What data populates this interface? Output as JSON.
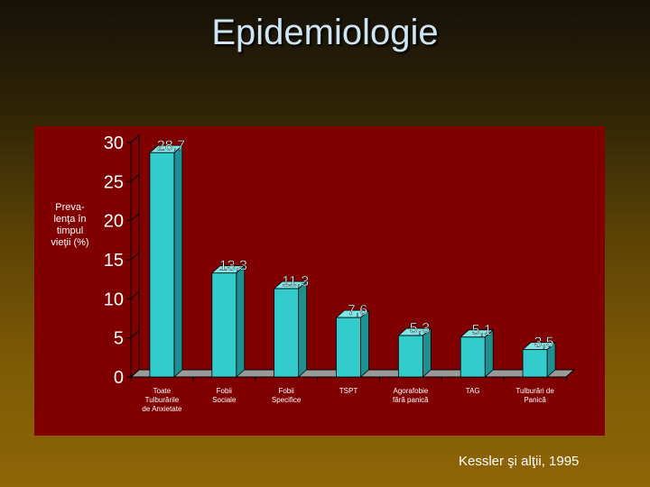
{
  "slide": {
    "title": "Epidemiologie",
    "citation": "Kessler şi alţii, 1995"
  },
  "colors": {
    "panel": "#800000",
    "bar": "#33cccc",
    "bar_dark": "#1f8f8f",
    "bar_top": "#7fe6e6",
    "grid": "#000000",
    "text": "#ffffff"
  },
  "chart_data": {
    "type": "bar",
    "title": "",
    "ylabel": "Preva-\nlenţa în timpul vieţii (%)",
    "xlabel": "",
    "ylim": [
      0,
      30
    ],
    "yticks": [
      0,
      5,
      10,
      15,
      20,
      25,
      30
    ],
    "categories": [
      "Toate Tulburările de Anxietate",
      "Fobii Sociale",
      "Fobii Specifice",
      "TSPT",
      "Agorafobie fără panică",
      "TAG",
      "Tulburări de Panică"
    ],
    "values": [
      28.7,
      13.3,
      11.3,
      7.6,
      5.3,
      5.1,
      3.5
    ],
    "value_labels": [
      "28,7",
      "13,3",
      "11,3",
      "7,6",
      "5,3",
      "5,1",
      "3,5"
    ],
    "grid": false,
    "legend": "none"
  }
}
